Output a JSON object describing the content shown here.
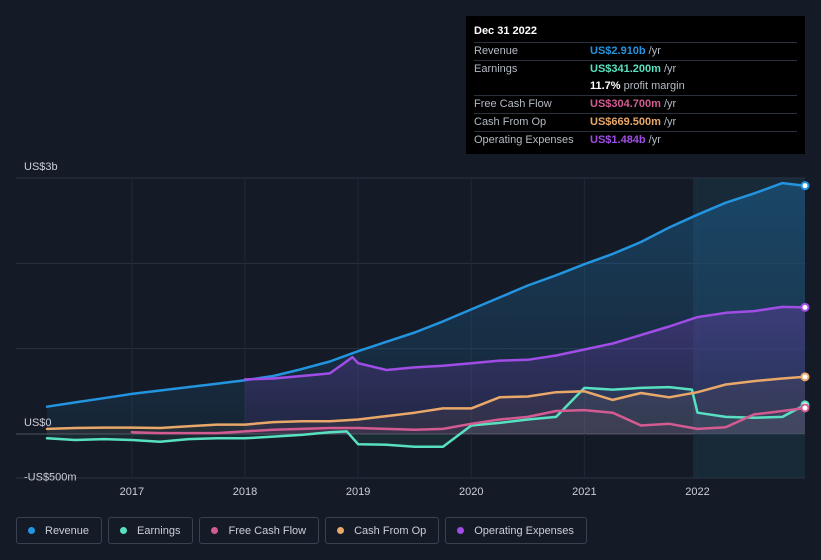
{
  "chart_data": {
    "type": "area",
    "title": "",
    "xlabel": "",
    "ylabel": "",
    "ylim": [
      -500,
      3000
    ],
    "xlim": [
      2016.25,
      2022.95
    ],
    "y_tick_labels": [
      {
        "value": 3000,
        "label": "US$3b"
      },
      {
        "value": 0,
        "label": "US$0"
      },
      {
        "value": -500,
        "label": "-US$500m"
      }
    ],
    "x_ticks": [
      2017,
      2018,
      2019,
      2020,
      2021,
      2022
    ],
    "x_tick_labels": [
      "2017",
      "2018",
      "2019",
      "2020",
      "2021",
      "2022"
    ],
    "grid": true,
    "legend_position": "bottom-left",
    "series": [
      {
        "name": "Revenue",
        "color": "#2394df",
        "x": [
          2016.25,
          2016.5,
          2016.75,
          2017.0,
          2017.25,
          2017.5,
          2017.75,
          2018.0,
          2018.25,
          2018.5,
          2018.75,
          2019.0,
          2019.25,
          2019.5,
          2019.75,
          2020.0,
          2020.25,
          2020.5,
          2020.75,
          2021.0,
          2021.25,
          2021.5,
          2021.75,
          2022.0,
          2022.25,
          2022.5,
          2022.75,
          2022.95
        ],
        "values": [
          320,
          370,
          420,
          470,
          510,
          550,
          590,
          630,
          680,
          760,
          850,
          970,
          1080,
          1190,
          1320,
          1460,
          1600,
          1740,
          1860,
          1990,
          2110,
          2250,
          2420,
          2570,
          2710,
          2820,
          2940,
          2910
        ]
      },
      {
        "name": "Earnings",
        "color": "#58e1c1",
        "x": [
          2016.25,
          2016.5,
          2016.75,
          2017.0,
          2017.25,
          2017.5,
          2017.75,
          2018.0,
          2018.25,
          2018.5,
          2018.75,
          2018.9,
          2019.0,
          2019.25,
          2019.5,
          2019.75,
          2020.0,
          2020.25,
          2020.5,
          2020.75,
          2021.0,
          2021.25,
          2021.5,
          2021.75,
          2021.95,
          2022.0,
          2022.25,
          2022.5,
          2022.75,
          2022.95
        ],
        "values": [
          -50,
          -70,
          -60,
          -70,
          -90,
          -60,
          -50,
          -50,
          -30,
          -10,
          20,
          30,
          -120,
          -125,
          -150,
          -150,
          100,
          130,
          170,
          200,
          540,
          520,
          540,
          550,
          520,
          250,
          200,
          190,
          200,
          341
        ]
      },
      {
        "name": "Free Cash Flow",
        "color": "#d25c92",
        "x": [
          2017.0,
          2017.25,
          2017.5,
          2017.75,
          2018.0,
          2018.25,
          2018.5,
          2018.75,
          2019.0,
          2019.25,
          2019.5,
          2019.75,
          2020.0,
          2020.25,
          2020.5,
          2020.75,
          2021.0,
          2021.25,
          2021.5,
          2021.75,
          2022.0,
          2022.25,
          2022.5,
          2022.75,
          2022.95
        ],
        "values": [
          20,
          10,
          10,
          10,
          30,
          50,
          60,
          70,
          70,
          60,
          50,
          60,
          120,
          170,
          200,
          270,
          280,
          250,
          100,
          120,
          60,
          80,
          230,
          270,
          305
        ]
      },
      {
        "name": "Cash From Op",
        "color": "#e9a869",
        "x": [
          2016.25,
          2016.5,
          2016.75,
          2017.0,
          2017.25,
          2017.5,
          2017.75,
          2018.0,
          2018.25,
          2018.5,
          2018.75,
          2019.0,
          2019.25,
          2019.5,
          2019.75,
          2020.0,
          2020.25,
          2020.5,
          2020.75,
          2021.0,
          2021.25,
          2021.5,
          2021.75,
          2022.0,
          2022.25,
          2022.5,
          2022.75,
          2022.95
        ],
        "values": [
          60,
          70,
          75,
          75,
          70,
          90,
          110,
          110,
          140,
          150,
          150,
          170,
          210,
          250,
          300,
          300,
          430,
          440,
          490,
          500,
          400,
          480,
          430,
          490,
          580,
          620,
          650,
          670
        ]
      },
      {
        "name": "Operating Expenses",
        "color": "#a04de6",
        "x": [
          2018.0,
          2018.25,
          2018.5,
          2018.75,
          2018.95,
          2019.0,
          2019.25,
          2019.5,
          2019.75,
          2020.0,
          2020.25,
          2020.5,
          2020.75,
          2021.0,
          2021.25,
          2021.5,
          2021.75,
          2022.0,
          2022.25,
          2022.5,
          2022.75,
          2022.95
        ],
        "values": [
          640,
          650,
          680,
          710,
          900,
          830,
          750,
          780,
          800,
          830,
          860,
          870,
          920,
          990,
          1060,
          1160,
          1260,
          1370,
          1420,
          1440,
          1490,
          1484
        ]
      }
    ]
  },
  "tooltip": {
    "date": "Dec 31 2022",
    "rows": [
      {
        "label": "Revenue",
        "value": "US$2.910b",
        "unit": "/yr",
        "color": "#2394df"
      },
      {
        "label": "Earnings",
        "value": "US$341.200m",
        "unit": "/yr",
        "color": "#58e1c1"
      },
      {
        "label": "",
        "value": "11.7%",
        "unit": "profit margin",
        "color": "#ffffff"
      },
      {
        "label": "Free Cash Flow",
        "value": "US$304.700m",
        "unit": "/yr",
        "color": "#d25c92"
      },
      {
        "label": "Cash From Op",
        "value": "US$669.500m",
        "unit": "/yr",
        "color": "#e9a869"
      },
      {
        "label": "Operating Expenses",
        "value": "US$1.484b",
        "unit": "/yr",
        "color": "#a04de6"
      }
    ]
  },
  "legend": [
    {
      "label": "Revenue",
      "color": "#2394df"
    },
    {
      "label": "Earnings",
      "color": "#58e1c1"
    },
    {
      "label": "Free Cash Flow",
      "color": "#d25c92"
    },
    {
      "label": "Cash From Op",
      "color": "#e9a869"
    },
    {
      "label": "Operating Expenses",
      "color": "#a04de6"
    }
  ]
}
